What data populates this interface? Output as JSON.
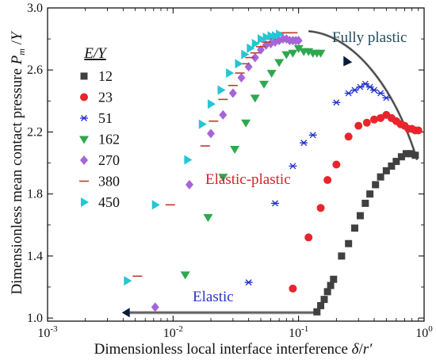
{
  "chart_data": {
    "type": "scatter",
    "title": "",
    "xlabel": "Dimensionless local interface interference  δ/r′",
    "ylabel": "Dimensionless mean contact pressure  Pm /Y",
    "xscale": "log",
    "xlim": [
      0.001,
      1
    ],
    "ylim": [
      0.98,
      3.0
    ],
    "x_ticks": [
      0.001,
      0.01,
      0.1,
      1
    ],
    "x_tick_labels": [
      "10-3",
      "10-2",
      "10-1",
      "100"
    ],
    "y_ticks": [
      1.0,
      1.4,
      1.8,
      2.2,
      2.6,
      3.0
    ],
    "y_tick_labels": [
      "1.0",
      "1.4",
      "1.8",
      "2.2",
      "2.6",
      "3.0"
    ],
    "grid": false,
    "legend": {
      "title": "E/Y",
      "position": "left-center"
    },
    "series": [
      {
        "name": "12",
        "marker": "square",
        "color": "#404040",
        "points": [
          [
            0.14,
            1.04
          ],
          [
            0.15,
            1.08
          ],
          [
            0.16,
            1.12
          ],
          [
            0.17,
            1.17
          ],
          [
            0.18,
            1.21
          ],
          [
            0.19,
            1.25
          ],
          [
            0.22,
            1.4
          ],
          [
            0.25,
            1.48
          ],
          [
            0.28,
            1.58
          ],
          [
            0.31,
            1.66
          ],
          [
            0.34,
            1.74
          ],
          [
            0.37,
            1.8
          ],
          [
            0.41,
            1.86
          ],
          [
            0.45,
            1.91
          ],
          [
            0.5,
            1.95
          ],
          [
            0.55,
            1.98
          ],
          [
            0.6,
            2.01
          ],
          [
            0.66,
            2.04
          ],
          [
            0.72,
            2.06
          ],
          [
            0.78,
            2.06
          ],
          [
            0.85,
            2.05
          ]
        ]
      },
      {
        "name": "23",
        "marker": "circle",
        "color": "#e8252c",
        "points": [
          [
            0.09,
            1.19
          ],
          [
            0.12,
            1.52
          ],
          [
            0.15,
            1.71
          ],
          [
            0.17,
            1.89
          ],
          [
            0.2,
            1.99
          ],
          [
            0.25,
            2.17
          ],
          [
            0.3,
            2.24
          ],
          [
            0.35,
            2.26
          ],
          [
            0.4,
            2.28
          ],
          [
            0.45,
            2.29
          ],
          [
            0.5,
            2.31
          ],
          [
            0.55,
            2.29
          ],
          [
            0.6,
            2.27
          ],
          [
            0.65,
            2.25
          ],
          [
            0.7,
            2.24
          ],
          [
            0.75,
            2.22
          ],
          [
            0.8,
            2.22
          ],
          [
            0.85,
            2.21
          ],
          [
            0.9,
            2.21
          ]
        ]
      },
      {
        "name": "51",
        "marker": "asterisk",
        "color": "#1f2ed0",
        "points": [
          [
            0.04,
            1.23
          ],
          [
            0.065,
            1.74
          ],
          [
            0.09,
            1.98
          ],
          [
            0.11,
            2.13
          ],
          [
            0.13,
            2.18
          ],
          [
            0.2,
            2.39
          ],
          [
            0.25,
            2.45
          ],
          [
            0.28,
            2.47
          ],
          [
            0.31,
            2.49
          ],
          [
            0.34,
            2.51
          ],
          [
            0.37,
            2.49
          ],
          [
            0.4,
            2.47
          ],
          [
            0.45,
            2.45
          ],
          [
            0.5,
            2.42
          ]
        ]
      },
      {
        "name": "162",
        "marker": "triangle-down",
        "color": "#2ea84e",
        "points": [
          [
            0.0125,
            1.28
          ],
          [
            0.019,
            1.65
          ],
          [
            0.025,
            1.91
          ],
          [
            0.031,
            2.09
          ],
          [
            0.038,
            2.26
          ],
          [
            0.045,
            2.42
          ],
          [
            0.053,
            2.51
          ],
          [
            0.061,
            2.58
          ],
          [
            0.07,
            2.65
          ],
          [
            0.08,
            2.7
          ],
          [
            0.09,
            2.71
          ],
          [
            0.1,
            2.74
          ],
          [
            0.11,
            2.72
          ],
          [
            0.12,
            2.72
          ],
          [
            0.13,
            2.71
          ],
          [
            0.14,
            2.71
          ],
          [
            0.15,
            2.71
          ]
        ]
      },
      {
        "name": "270",
        "marker": "diamond",
        "color": "#a565d8",
        "points": [
          [
            0.0072,
            1.07
          ],
          [
            0.0135,
            1.86
          ],
          [
            0.02,
            2.19
          ],
          [
            0.025,
            2.31
          ],
          [
            0.03,
            2.45
          ],
          [
            0.035,
            2.55
          ],
          [
            0.04,
            2.62
          ],
          [
            0.045,
            2.68
          ],
          [
            0.05,
            2.73
          ],
          [
            0.055,
            2.76
          ],
          [
            0.06,
            2.77
          ],
          [
            0.065,
            2.78
          ],
          [
            0.07,
            2.79
          ],
          [
            0.075,
            2.8
          ],
          [
            0.08,
            2.8
          ],
          [
            0.085,
            2.79
          ],
          [
            0.09,
            2.79
          ],
          [
            0.095,
            2.79
          ],
          [
            0.1,
            2.79
          ]
        ]
      },
      {
        "name": "380",
        "marker": "dash",
        "color": "#c0392b",
        "points": [
          [
            0.0052,
            1.27
          ],
          [
            0.0095,
            1.73
          ],
          [
            0.018,
            2.11
          ],
          [
            0.021,
            2.27
          ],
          [
            0.025,
            2.41
          ],
          [
            0.03,
            2.5
          ],
          [
            0.034,
            2.58
          ],
          [
            0.037,
            2.64
          ],
          [
            0.041,
            2.68
          ],
          [
            0.045,
            2.71
          ],
          [
            0.05,
            2.75
          ],
          [
            0.055,
            2.78
          ],
          [
            0.06,
            2.8
          ],
          [
            0.065,
            2.82
          ],
          [
            0.07,
            2.83
          ],
          [
            0.075,
            2.84
          ],
          [
            0.08,
            2.84
          ],
          [
            0.085,
            2.84
          ],
          [
            0.09,
            2.84
          ]
        ]
      },
      {
        "name": "450",
        "marker": "triangle-right",
        "color": "#26c5d3",
        "points": [
          [
            0.0043,
            1.24
          ],
          [
            0.0072,
            1.73
          ],
          [
            0.013,
            2.02
          ],
          [
            0.017,
            2.25
          ],
          [
            0.02,
            2.38
          ],
          [
            0.024,
            2.47
          ],
          [
            0.028,
            2.58
          ],
          [
            0.033,
            2.64
          ],
          [
            0.037,
            2.7
          ],
          [
            0.041,
            2.74
          ],
          [
            0.045,
            2.77
          ],
          [
            0.05,
            2.8
          ],
          [
            0.055,
            2.81
          ],
          [
            0.06,
            2.82
          ],
          [
            0.065,
            2.82
          ],
          [
            0.07,
            2.83
          ]
        ]
      }
    ],
    "annotations": [
      {
        "text": "Fully plastic",
        "color": "#1e4a5a"
      },
      {
        "text": "Elastic-plastic",
        "color": "#d8202a"
      },
      {
        "text": "Elastic",
        "color": "#2a35c8"
      }
    ]
  }
}
